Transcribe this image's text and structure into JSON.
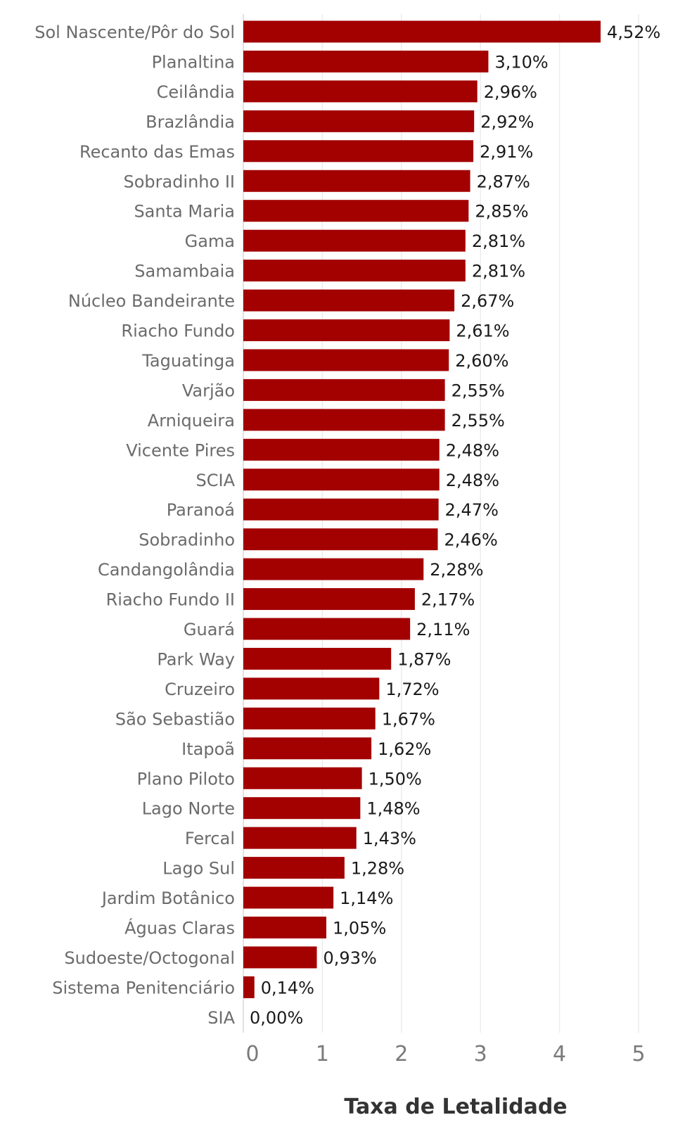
{
  "chart_data": {
    "type": "bar",
    "orientation": "horizontal",
    "xlabel": "Taxa de Letalidade",
    "ylabel": "",
    "xlim": [
      0,
      5.6
    ],
    "xticks": [
      0,
      1,
      2,
      3,
      4,
      5
    ],
    "xtick_labels": [
      "0",
      "1",
      "2",
      "3",
      "4",
      "5"
    ],
    "grid": true,
    "bar_color": "#a30000",
    "categories": [
      "Sol Nascente/Pôr do Sol",
      "Planaltina",
      "Ceilândia",
      "Brazlândia",
      "Recanto das Emas",
      "Sobradinho II",
      "Santa Maria",
      "Gama",
      "Samambaia",
      "Núcleo Bandeirante",
      "Riacho Fundo",
      "Taguatinga",
      "Varjão",
      "Arniqueira",
      "Vicente Pires",
      "SCIA",
      "Paranoá",
      "Sobradinho",
      "Candangolândia",
      "Riacho Fundo II",
      "Guará",
      "Park Way",
      "Cruzeiro",
      "São Sebastião",
      "Itapoã",
      "Plano Piloto",
      "Lago Norte",
      "Fercal",
      "Lago Sul",
      "Jardim Botânico",
      "Águas Claras",
      "Sudoeste/Octogonal",
      "Sistema Penitenciário",
      "SIA"
    ],
    "values": [
      4.52,
      3.1,
      2.96,
      2.92,
      2.91,
      2.87,
      2.85,
      2.81,
      2.81,
      2.67,
      2.61,
      2.6,
      2.55,
      2.55,
      2.48,
      2.48,
      2.47,
      2.46,
      2.28,
      2.17,
      2.11,
      1.87,
      1.72,
      1.67,
      1.62,
      1.5,
      1.48,
      1.43,
      1.28,
      1.14,
      1.05,
      0.93,
      0.14,
      0.0
    ],
    "value_labels": [
      "4,52%",
      "3,10%",
      "2,96%",
      "2,92%",
      "2,91%",
      "2,87%",
      "2,85%",
      "2,81%",
      "2,81%",
      "2,67%",
      "2,61%",
      "2,60%",
      "2,55%",
      "2,55%",
      "2,48%",
      "2,48%",
      "2,47%",
      "2,46%",
      "2,28%",
      "2,17%",
      "2,11%",
      "1,87%",
      "1,72%",
      "1,67%",
      "1,62%",
      "1,50%",
      "1,48%",
      "1,43%",
      "1,28%",
      "1,14%",
      "1,05%",
      "0,93%",
      "0,14%",
      "0,00%"
    ]
  }
}
